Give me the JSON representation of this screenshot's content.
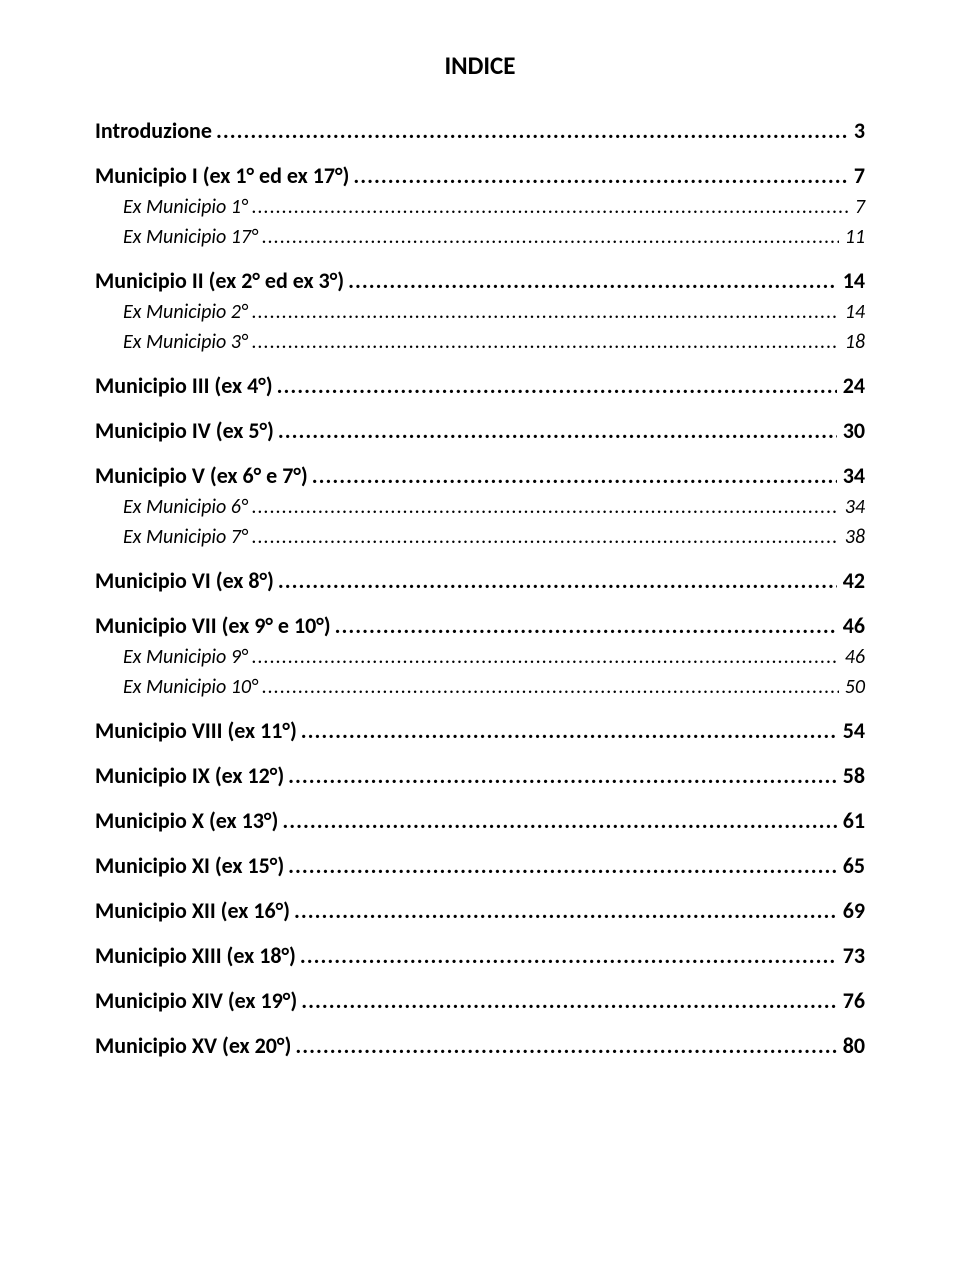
{
  "title": "INDICE",
  "entries": [
    {
      "level": 1,
      "label": "Introduzione",
      "page": "3"
    },
    {
      "level": 1,
      "label": "Municipio I (ex 1° ed ex 17°)",
      "page": "7"
    },
    {
      "level": 2,
      "label": "Ex Municipio 1°",
      "page": "7"
    },
    {
      "level": 2,
      "label": "Ex Municipio 17°",
      "page": "11"
    },
    {
      "level": 1,
      "label": "Municipio II (ex 2° ed ex 3°)",
      "page": "14"
    },
    {
      "level": 2,
      "label": "Ex Municipio 2°",
      "page": "14"
    },
    {
      "level": 2,
      "label": "Ex Municipio 3°",
      "page": "18"
    },
    {
      "level": 1,
      "label": "Municipio III (ex 4°)",
      "page": "24"
    },
    {
      "level": 1,
      "label": "Municipio IV (ex 5°)",
      "page": "30"
    },
    {
      "level": 1,
      "label": "Municipio V (ex 6° e 7°)",
      "page": "34"
    },
    {
      "level": 2,
      "label": "Ex Municipio 6°",
      "page": "34"
    },
    {
      "level": 2,
      "label": "Ex Municipio 7°",
      "page": "38"
    },
    {
      "level": 1,
      "label": "Municipio VI (ex 8°)",
      "page": "42"
    },
    {
      "level": 1,
      "label": "Municipio VII (ex 9° e 10°)",
      "page": "46"
    },
    {
      "level": 2,
      "label": "Ex Municipio 9°",
      "page": "46"
    },
    {
      "level": 2,
      "label": "Ex Municipio 10°",
      "page": "50"
    },
    {
      "level": 1,
      "label": "Municipio VIII (ex 11°)",
      "page": "54"
    },
    {
      "level": 1,
      "label": "Municipio IX (ex 12°)",
      "page": "58"
    },
    {
      "level": 1,
      "label": "Municipio X (ex 13°)",
      "page": "61"
    },
    {
      "level": 1,
      "label": "Municipio XI (ex 15°)",
      "page": "65"
    },
    {
      "level": 1,
      "label": "Municipio XII (ex 16°)",
      "page": "69"
    },
    {
      "level": 1,
      "label": "Municipio XIII (ex 18°)",
      "page": "73"
    },
    {
      "level": 1,
      "label": "Municipio XIV (ex 19°)",
      "page": "76"
    },
    {
      "level": 1,
      "label": "Municipio XV (ex 20°)",
      "page": "80"
    }
  ]
}
